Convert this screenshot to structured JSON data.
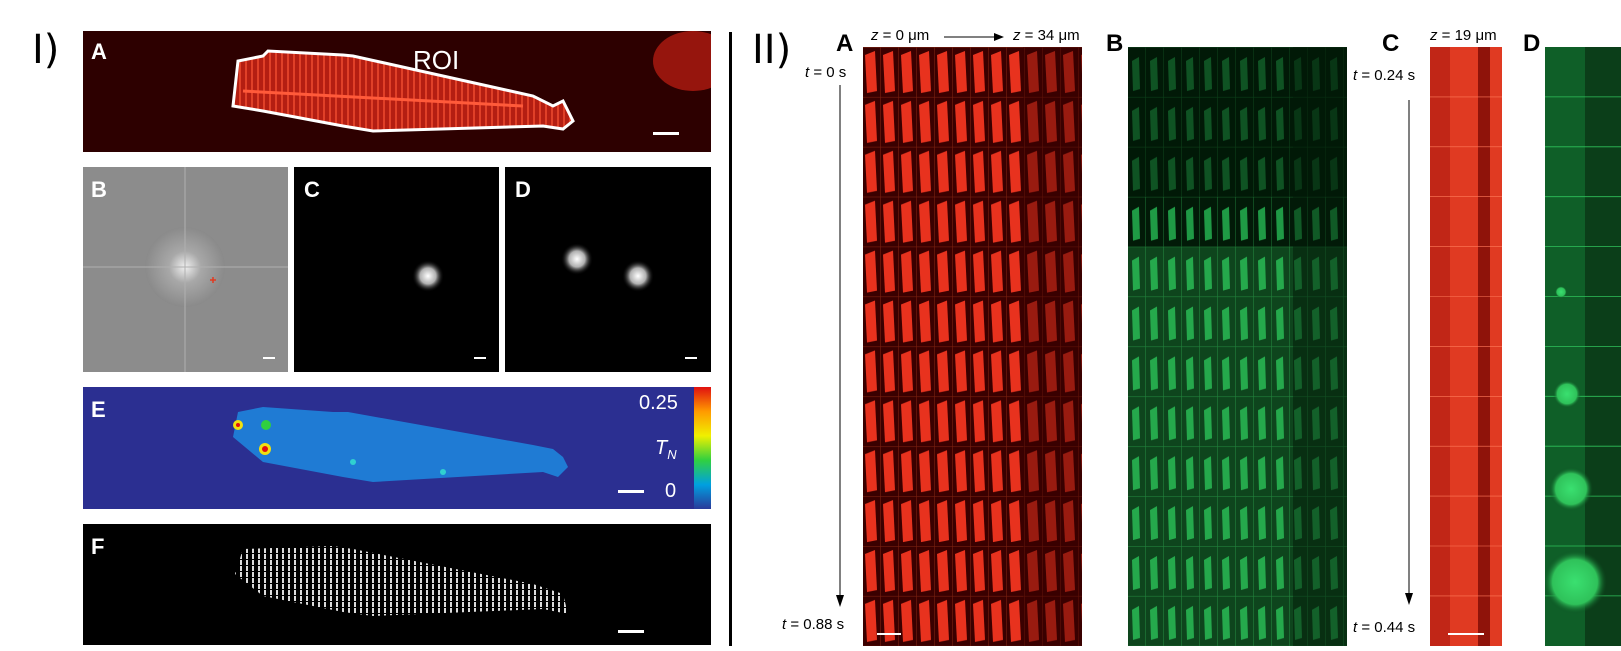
{
  "section_I": {
    "label": "I)",
    "panels": {
      "A": {
        "label": "A",
        "roi_label": "ROI"
      },
      "B": {
        "label": "B"
      },
      "C": {
        "label": "C"
      },
      "D": {
        "label": "D"
      },
      "E": {
        "label": "E",
        "scale_max": "0.25",
        "scale_min": "0",
        "scale_var": "T",
        "scale_var_sub": "N"
      },
      "F": {
        "label": "F"
      }
    }
  },
  "section_II": {
    "label": "II)",
    "panels": {
      "A": {
        "label": "A",
        "z_start_var": "z",
        "z_start_val": " = 0 μm",
        "z_end_var": "z",
        "z_end_val": " = 34 μm",
        "t_start_var": "t",
        "t_start_val": " = 0 s",
        "t_end_var": "t",
        "t_end_val": " = 0.88 s"
      },
      "B": {
        "label": "B"
      },
      "C": {
        "label": "C",
        "z_var": "z",
        "z_val": " = 19 μm",
        "t_start_var": "t",
        "t_start_val": " = 0.24 s",
        "t_end_var": "t",
        "t_end_val": " = 0.44 s"
      },
      "D": {
        "label": "D"
      }
    }
  },
  "colors": {
    "red_signal": "#e8321e",
    "green_signal": "#2fc25a",
    "panel_bg": "#000000",
    "colormap_bg": "#2b2f91"
  }
}
